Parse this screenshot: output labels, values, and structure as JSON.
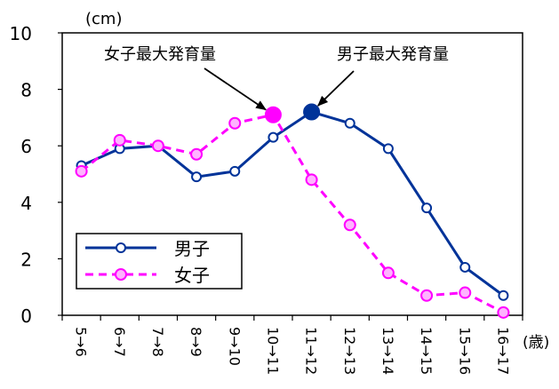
{
  "chart_data": {
    "type": "line",
    "title": "",
    "unit_label": "(cm)",
    "xlabel": "",
    "x_unit_label": "(歳)",
    "ylabel": "",
    "ylim": [
      0,
      10
    ],
    "yticks": [
      0,
      2,
      4,
      6,
      8,
      10
    ],
    "categories": [
      "5→6",
      "6→7",
      "7→8",
      "8→9",
      "9→10",
      "10→11",
      "11→12",
      "12→13",
      "13→14",
      "14→15",
      "15→16",
      "16→17"
    ],
    "series": [
      {
        "name": "男子",
        "color": "#003399",
        "dash": false,
        "values": [
          5.3,
          5.9,
          6.0,
          4.9,
          5.1,
          6.3,
          7.2,
          6.8,
          5.9,
          3.8,
          1.7,
          0.7
        ]
      },
      {
        "name": "女子",
        "color": "#ff00ff",
        "dash": true,
        "values": [
          5.1,
          6.2,
          6.0,
          5.7,
          6.8,
          7.1,
          4.8,
          3.2,
          1.5,
          0.7,
          0.8,
          0.1
        ]
      }
    ],
    "legend": {
      "placement": "bottom-left"
    },
    "grid": false,
    "annotations": [
      {
        "text": "女子最大発育量",
        "series": 1,
        "index": 5
      },
      {
        "text": "男子最大発育量",
        "series": 0,
        "index": 6
      }
    ]
  }
}
